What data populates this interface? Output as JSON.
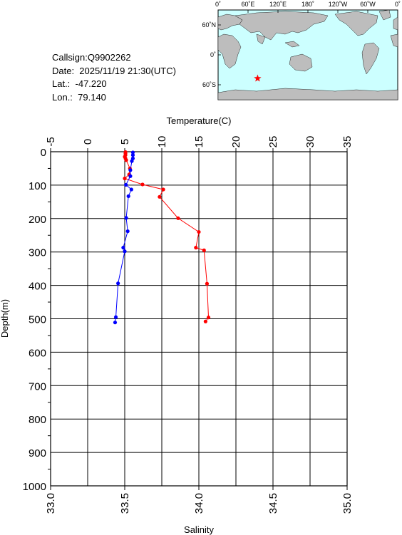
{
  "header": {
    "callsign": "Callsign:Q9902262",
    "date": "Date:  2025/11/19 21:30(UTC)",
    "lat": "Lat.:  -47.220",
    "lon": "Lon.:  79.140"
  },
  "map": {
    "lon_labels": [
      "0˚",
      "60˚E",
      "120˚E",
      "180˚",
      "120˚W",
      "60˚W",
      "0˚"
    ],
    "lat_labels": [
      "60˚N",
      "0˚",
      "60˚S"
    ],
    "station": {
      "lon": 79.14,
      "lat": -47.22,
      "marker": "star",
      "color": "#ff0000"
    },
    "ocean_color": "#ccffff",
    "land_color": "#bdbdbd"
  },
  "chart_data": {
    "type": "line",
    "y_axis": {
      "label": "Depth(m)",
      "range": [
        0,
        1000
      ],
      "inverted": true,
      "ticks": [
        "0",
        "100",
        "200",
        "300",
        "400",
        "500",
        "600",
        "700",
        "800",
        "900",
        "1000"
      ]
    },
    "x_axis_top": {
      "label": "Temperature(C)",
      "range": [
        -5,
        35
      ],
      "ticks": [
        "-5",
        "0",
        "5",
        "10",
        "15",
        "20",
        "25",
        "30",
        "35"
      ]
    },
    "x_axis_bottom": {
      "label": "Salinity",
      "range": [
        33.0,
        35.0
      ],
      "ticks": [
        "33.0",
        "33.5",
        "34.0",
        "34.5",
        "35.0"
      ]
    },
    "grid": true,
    "series": [
      {
        "name": "Temperature",
        "axis": "top",
        "color": "#ff0000",
        "points": [
          [
            5.1,
            1
          ],
          [
            5.1,
            5
          ],
          [
            5.1,
            10
          ],
          [
            5.0,
            15
          ],
          [
            5.1,
            20
          ],
          [
            5.2,
            25
          ],
          [
            5.7,
            50
          ],
          [
            5.6,
            68
          ],
          [
            5.0,
            80
          ],
          [
            7.4,
            98
          ],
          [
            10.2,
            113
          ],
          [
            9.7,
            135
          ],
          [
            12.2,
            199
          ],
          [
            15.0,
            240
          ],
          [
            14.6,
            287
          ],
          [
            15.7,
            295
          ],
          [
            16.1,
            395
          ],
          [
            16.3,
            496
          ],
          [
            15.9,
            508
          ]
        ]
      },
      {
        "name": "Salinity",
        "axis": "bottom",
        "color": "#0000ff",
        "points": [
          [
            33.555,
            2
          ],
          [
            33.555,
            10
          ],
          [
            33.555,
            20
          ],
          [
            33.548,
            28
          ],
          [
            33.538,
            55
          ],
          [
            33.538,
            73
          ],
          [
            33.508,
            99
          ],
          [
            33.545,
            113
          ],
          [
            33.525,
            133
          ],
          [
            33.51,
            198
          ],
          [
            33.52,
            238
          ],
          [
            33.49,
            287
          ],
          [
            33.5,
            298
          ],
          [
            33.455,
            394
          ],
          [
            33.44,
            495
          ],
          [
            33.435,
            511
          ]
        ]
      }
    ]
  }
}
